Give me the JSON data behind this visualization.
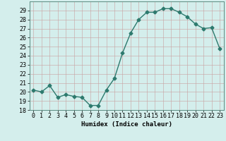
{
  "x": [
    0,
    1,
    2,
    3,
    4,
    5,
    6,
    7,
    8,
    9,
    10,
    11,
    12,
    13,
    14,
    15,
    16,
    17,
    18,
    19,
    20,
    21,
    22,
    23
  ],
  "y": [
    20.2,
    20.0,
    20.7,
    19.4,
    19.7,
    19.5,
    19.4,
    18.5,
    18.5,
    20.2,
    21.5,
    24.3,
    26.5,
    28.0,
    28.8,
    28.8,
    29.2,
    29.2,
    28.8,
    28.3,
    27.5,
    27.0,
    27.1,
    24.8
  ],
  "line_color": "#2d7a6e",
  "marker": "D",
  "marker_size": 2.5,
  "bg_color": "#d4eeec",
  "grid_color": "#c8a0a0",
  "grid_color_light": "#ddc8c8",
  "xlabel": "Humidex (Indice chaleur)",
  "ylim": [
    18,
    30
  ],
  "yticks": [
    18,
    19,
    20,
    21,
    22,
    23,
    24,
    25,
    26,
    27,
    28,
    29
  ],
  "xlim": [
    -0.5,
    23.5
  ],
  "xticks": [
    0,
    1,
    2,
    3,
    4,
    5,
    6,
    7,
    8,
    9,
    10,
    11,
    12,
    13,
    14,
    15,
    16,
    17,
    18,
    19,
    20,
    21,
    22,
    23
  ],
  "label_fontsize": 6.5,
  "tick_fontsize": 6,
  "line_width": 1.0,
  "spine_color": "#5a8a80"
}
